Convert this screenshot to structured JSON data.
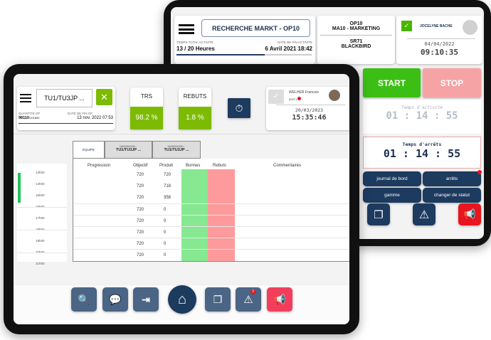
{
  "back": {
    "menu_icon": "hamburger-icon",
    "order_button": "RECHERCHE MARKT - OP10",
    "total_activity_label": "TEMPS TOTAL ACTIVITE",
    "total_activity_value": "13 / 20 Heures",
    "total_activity_progress": 0.65,
    "end_date_label": "DATE DE FIN ACTIVITE",
    "end_date_value": "6 Avril 2021 18:42",
    "op": "OP10",
    "ma": "MA10 - MARKETING",
    "sr": "SR71",
    "machine": "BLACKBIRD",
    "user": "JOCELYNE BACHE",
    "date": "04/04/2022",
    "time": "09:10:35",
    "start": "START",
    "stop": "STOP",
    "activity_label": "Temps d'activité",
    "activity_time": "01 : 14 : 55",
    "stops_label": "Temps d'arrêts",
    "stops_time": "01 : 14 : 55",
    "buttons": [
      "journal de bord",
      "arrêts",
      "gamme",
      "changer de statut"
    ],
    "colors": {
      "start": "#3cbf14",
      "stop": "#f6a3a6",
      "navy": "#1d3a5f",
      "alert": "#e8141e"
    }
  },
  "front": {
    "order_button": "TU1/TU3JP ...",
    "qty_label": "QUANTITE OF",
    "qty_value": "98110",
    "qty_total": "/101800",
    "end_label": "DATE DE FIN OF",
    "end_value": "13 nov. 2022 07:53",
    "trs_label": "TRS",
    "trs_value": "98.2 %",
    "rebuts_label": "REBUTS",
    "rebuts_value": "1.8 %",
    "user": "WELHER Francois",
    "user_code": "600T1",
    "date": "20/03/2023",
    "time": "15:35:46",
    "tabs": [
      {
        "top": "",
        "label": "EQUIPE"
      },
      {
        "top": "1608464280...",
        "label": "TU1/TU3JP ..."
      },
      {
        "top": "1608464280...",
        "label": "TU1/TU3JP ..."
      }
    ],
    "hours": [
      "13h00",
      "14h00",
      "15h00",
      "16h00",
      "17h00",
      "18h00",
      "19h00",
      "20h00",
      "21h00"
    ],
    "columns": [
      "Progression",
      "Objectif",
      "Produit",
      "Bonnes",
      "Rebuts",
      "Commentaires"
    ],
    "rows": [
      [
        "720",
        "720"
      ],
      [
        "720",
        "718"
      ],
      [
        "720",
        "358"
      ],
      [
        "720",
        "0"
      ],
      [
        "720",
        "0"
      ],
      [
        "720",
        "0"
      ],
      [
        "720",
        "0"
      ],
      [
        "720",
        "0"
      ]
    ],
    "alert_badge": "3",
    "colors": {
      "green": "#7cbb00",
      "bonnes": "#86e890",
      "rebuts": "#ff9a9c",
      "navbtn": "#4a6585",
      "alarm": "#f23e5c"
    }
  }
}
